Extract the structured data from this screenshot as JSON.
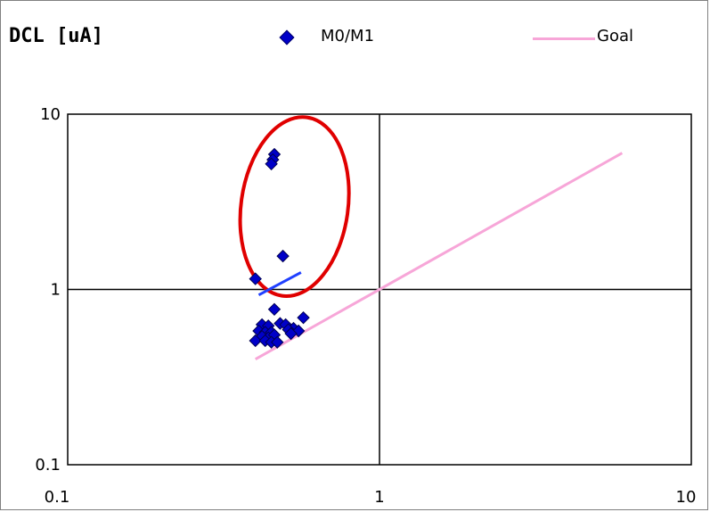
{
  "chart_data": {
    "type": "scatter",
    "title": "DCL [uA]",
    "xlabel": "",
    "ylabel": "",
    "xscale": "log",
    "yscale": "log",
    "xlim": [
      0.1,
      10
    ],
    "ylim": [
      0.1,
      10
    ],
    "x_ticks": [
      "0.1",
      "1",
      "10"
    ],
    "y_ticks": [
      "0.1",
      "1",
      "10"
    ],
    "legend_position": "top",
    "series": [
      {
        "name": "M0/M1",
        "marker": "diamond",
        "color": "#0000c8",
        "points": [
          [
            0.46,
            5.9
          ],
          [
            0.455,
            5.5
          ],
          [
            0.45,
            5.2
          ],
          [
            0.49,
            1.55
          ],
          [
            0.4,
            1.15
          ],
          [
            0.46,
            0.77
          ],
          [
            0.57,
            0.69
          ],
          [
            0.42,
            0.63
          ],
          [
            0.44,
            0.62
          ],
          [
            0.48,
            0.64
          ],
          [
            0.5,
            0.63
          ],
          [
            0.53,
            0.6
          ],
          [
            0.41,
            0.58
          ],
          [
            0.43,
            0.57
          ],
          [
            0.45,
            0.57
          ],
          [
            0.51,
            0.59
          ],
          [
            0.55,
            0.58
          ],
          [
            0.42,
            0.54
          ],
          [
            0.44,
            0.53
          ],
          [
            0.46,
            0.55
          ],
          [
            0.52,
            0.56
          ],
          [
            0.4,
            0.51
          ],
          [
            0.43,
            0.51
          ],
          [
            0.45,
            0.5
          ],
          [
            0.47,
            0.5
          ]
        ]
      },
      {
        "name": "Goal",
        "type": "line",
        "color": "#f7a6d8",
        "points": [
          [
            0.4,
            0.4
          ],
          [
            6,
            6
          ]
        ]
      }
    ],
    "annotations": [
      {
        "type": "ellipse",
        "color": "#e00000",
        "center": [
          0.45,
          2.8
        ],
        "note": ""
      },
      {
        "type": "line",
        "color": "#2040ff",
        "points": [
          [
            0.41,
            0.93
          ],
          [
            0.56,
            1.25
          ]
        ]
      }
    ],
    "reference_lines": {
      "x": 1,
      "y": 1,
      "color": "#000000"
    }
  }
}
